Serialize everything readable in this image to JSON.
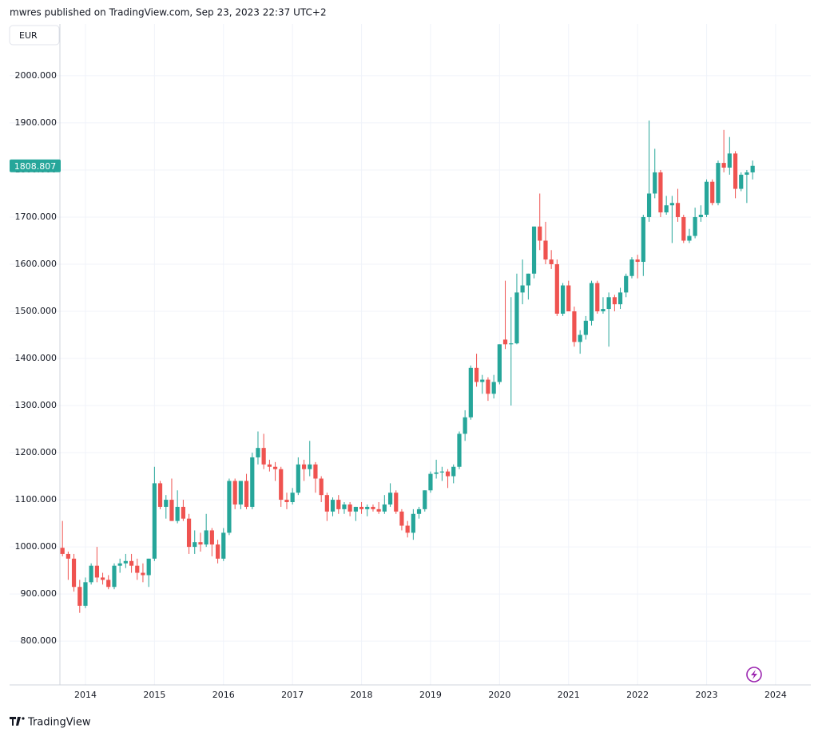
{
  "header": "mwres published on TradingView.com, Sep 23, 2023 22:37 UTC+2",
  "footer": "TradingView",
  "chart_data": {
    "type": "candlestick",
    "currency": "EUR",
    "up_color": "#26a69a",
    "down_color": "#ef5350",
    "grid": true,
    "xlim": [
      2013.63,
      2024.51
    ],
    "xticks": [
      2014,
      2015,
      2016,
      2017,
      2018,
      2019,
      2020,
      2021,
      2022,
      2023,
      2024
    ],
    "ylim": [
      707,
      2110
    ],
    "yticks": [
      {
        "value": 800,
        "label": "800.000"
      },
      {
        "value": 900,
        "label": "900.000"
      },
      {
        "value": 1000,
        "label": "1000.000"
      },
      {
        "value": 1100,
        "label": "1100.000"
      },
      {
        "value": 1200,
        "label": "1200.000"
      },
      {
        "value": 1300,
        "label": "1300.000"
      },
      {
        "value": 1400,
        "label": "1400.000"
      },
      {
        "value": 1500,
        "label": "1500.000"
      },
      {
        "value": 1600,
        "label": "1600.000"
      },
      {
        "value": 1700,
        "label": "1700.000"
      },
      {
        "value": 1800,
        "label": "1800.000"
      },
      {
        "value": 1900,
        "label": "1900.000"
      },
      {
        "value": 2000,
        "label": "2000.000"
      }
    ],
    "x": [
      2013.667,
      2013.75,
      2013.833,
      2013.917,
      2014,
      2014.083,
      2014.167,
      2014.25,
      2014.333,
      2014.417,
      2014.5,
      2014.583,
      2014.667,
      2014.75,
      2014.833,
      2014.917,
      2015,
      2015.083,
      2015.167,
      2015.25,
      2015.333,
      2015.417,
      2015.5,
      2015.583,
      2015.667,
      2015.75,
      2015.833,
      2015.917,
      2016,
      2016.083,
      2016.167,
      2016.25,
      2016.333,
      2016.417,
      2016.5,
      2016.583,
      2016.667,
      2016.75,
      2016.833,
      2016.917,
      2017,
      2017.083,
      2017.167,
      2017.25,
      2017.333,
      2017.417,
      2017.5,
      2017.583,
      2017.667,
      2017.75,
      2017.833,
      2017.917,
      2018,
      2018.083,
      2018.167,
      2018.25,
      2018.333,
      2018.417,
      2018.5,
      2018.583,
      2018.667,
      2018.75,
      2018.833,
      2018.917,
      2019,
      2019.083,
      2019.167,
      2019.25,
      2019.333,
      2019.417,
      2019.5,
      2019.583,
      2019.667,
      2019.75,
      2019.833,
      2019.917,
      2020,
      2020.083,
      2020.167,
      2020.25,
      2020.333,
      2020.417,
      2020.5,
      2020.583,
      2020.667,
      2020.75,
      2020.833,
      2020.917,
      2021,
      2021.083,
      2021.167,
      2021.25,
      2021.333,
      2021.417,
      2021.5,
      2021.583,
      2021.667,
      2021.75,
      2021.833,
      2021.917,
      2022,
      2022.083,
      2022.167,
      2022.25,
      2022.333,
      2022.417,
      2022.5,
      2022.583,
      2022.667,
      2022.75,
      2022.833,
      2022.917,
      2023,
      2023.083,
      2023.167,
      2023.25,
      2023.333,
      2023.417,
      2023.5,
      2023.583,
      2023.667
    ],
    "open": [
      998,
      985,
      975,
      915,
      875,
      925,
      960,
      935,
      930,
      915,
      960,
      965,
      970,
      960,
      945,
      940,
      975,
      1135,
      1085,
      1100,
      1055,
      1085,
      1060,
      1000,
      1010,
      1005,
      1035,
      1005,
      975,
      1030,
      1140,
      1090,
      1140,
      1085,
      1190,
      1210,
      1175,
      1170,
      1165,
      1100,
      1095,
      1115,
      1175,
      1165,
      1175,
      1145,
      1110,
      1075,
      1100,
      1080,
      1090,
      1075,
      1085,
      1080,
      1085,
      1080,
      1075,
      1090,
      1115,
      1075,
      1045,
      1030,
      1070,
      1080,
      1120,
      1155,
      1158,
      1160,
      1150,
      1170,
      1240,
      1275,
      1380,
      1350,
      1355,
      1325,
      1350,
      1440,
      1430,
      1432,
      1540,
      1555,
      1580,
      1680,
      1650,
      1610,
      1600,
      1495,
      1555,
      1500,
      1435,
      1450,
      1480,
      1560,
      1500,
      1505,
      1530,
      1515,
      1540,
      1575,
      1610,
      1605,
      1700,
      1750,
      1795,
      1710,
      1725,
      1730,
      1700,
      1650,
      1660,
      1700,
      1705,
      1775,
      1730,
      1815,
      1805,
      1835,
      1760,
      1790,
      1795
    ],
    "high": [
      1055,
      990,
      985,
      930,
      935,
      965,
      1000,
      945,
      940,
      965,
      975,
      985,
      985,
      975,
      965,
      975,
      1170,
      1140,
      1110,
      1145,
      1120,
      1100,
      1070,
      1035,
      1030,
      1070,
      1040,
      1015,
      1040,
      1145,
      1145,
      1140,
      1155,
      1200,
      1245,
      1240,
      1185,
      1180,
      1170,
      1115,
      1125,
      1190,
      1185,
      1225,
      1180,
      1150,
      1115,
      1105,
      1110,
      1095,
      1095,
      1085,
      1095,
      1090,
      1090,
      1095,
      1110,
      1135,
      1120,
      1080,
      1055,
      1080,
      1085,
      1120,
      1160,
      1185,
      1170,
      1165,
      1175,
      1245,
      1290,
      1385,
      1410,
      1365,
      1360,
      1365,
      1430,
      1565,
      1530,
      1580,
      1610,
      1580,
      1680,
      1750,
      1690,
      1630,
      1610,
      1560,
      1565,
      1510,
      1460,
      1490,
      1565,
      1565,
      1530,
      1540,
      1535,
      1550,
      1580,
      1615,
      1620,
      1705,
      1905,
      1845,
      1800,
      1745,
      1745,
      1760,
      1705,
      1675,
      1720,
      1725,
      1780,
      1780,
      1820,
      1885,
      1870,
      1840,
      1795,
      1800,
      1820
    ],
    "low": [
      980,
      930,
      905,
      860,
      870,
      920,
      925,
      920,
      910,
      910,
      945,
      955,
      945,
      930,
      925,
      915,
      970,
      1080,
      1060,
      1055,
      1050,
      1055,
      985,
      985,
      990,
      1000,
      980,
      965,
      970,
      1025,
      1080,
      1080,
      1080,
      1080,
      1175,
      1165,
      1160,
      1140,
      1085,
      1080,
      1090,
      1110,
      1140,
      1150,
      1115,
      1095,
      1055,
      1065,
      1070,
      1070,
      1065,
      1055,
      1070,
      1065,
      1075,
      1070,
      1070,
      1085,
      1070,
      1035,
      1020,
      1015,
      1060,
      1075,
      1115,
      1145,
      1140,
      1125,
      1135,
      1165,
      1225,
      1270,
      1340,
      1325,
      1310,
      1315,
      1345,
      1420,
      1300,
      1430,
      1515,
      1525,
      1570,
      1630,
      1600,
      1590,
      1490,
      1490,
      1500,
      1425,
      1410,
      1440,
      1470,
      1495,
      1495,
      1425,
      1500,
      1505,
      1530,
      1570,
      1570,
      1575,
      1690,
      1740,
      1700,
      1705,
      1645,
      1690,
      1645,
      1645,
      1655,
      1690,
      1700,
      1725,
      1725,
      1795,
      1790,
      1740,
      1755,
      1730,
      1780
    ],
    "close": [
      985,
      975,
      915,
      875,
      925,
      960,
      935,
      930,
      915,
      960,
      965,
      970,
      960,
      945,
      940,
      975,
      1135,
      1085,
      1100,
      1055,
      1085,
      1060,
      1000,
      1010,
      1005,
      1035,
      1005,
      975,
      1030,
      1140,
      1090,
      1140,
      1085,
      1190,
      1210,
      1175,
      1170,
      1165,
      1100,
      1095,
      1115,
      1175,
      1165,
      1175,
      1145,
      1110,
      1075,
      1100,
      1080,
      1090,
      1075,
      1085,
      1080,
      1085,
      1080,
      1075,
      1090,
      1115,
      1075,
      1045,
      1030,
      1070,
      1080,
      1120,
      1155,
      1158,
      1160,
      1150,
      1170,
      1240,
      1275,
      1380,
      1350,
      1355,
      1325,
      1350,
      1430,
      1430,
      1432,
      1540,
      1555,
      1580,
      1680,
      1650,
      1610,
      1600,
      1495,
      1555,
      1500,
      1435,
      1450,
      1480,
      1560,
      1500,
      1505,
      1530,
      1515,
      1540,
      1575,
      1610,
      1605,
      1700,
      1750,
      1795,
      1710,
      1725,
      1730,
      1700,
      1650,
      1660,
      1700,
      1705,
      1775,
      1730,
      1815,
      1805,
      1835,
      1760,
      1790,
      1795,
      1808.807
    ]
  }
}
